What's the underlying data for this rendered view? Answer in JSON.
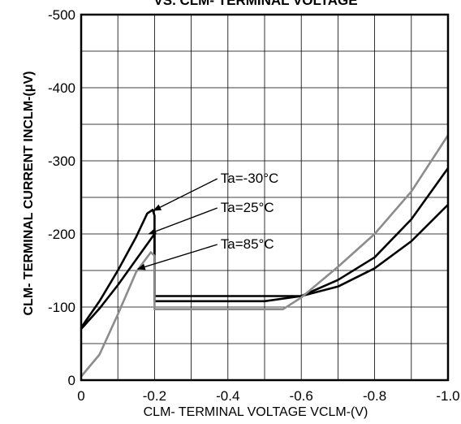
{
  "chart_data": {
    "type": "line",
    "title": "VS. CLM- TERMINAL VOLTAGE",
    "xlabel": "CLM- TERMINAL VOLTAGE VCLM-(V)",
    "ylabel": "CLM- TERMINAL CURRENT INCLM-(μV)",
    "xlim": [
      0,
      -1.0
    ],
    "ylim": [
      0,
      -500
    ],
    "x_ticks": [
      "0",
      "-0.2",
      "-0.4",
      "-0.6",
      "-0.8",
      "-1.0"
    ],
    "x_tick_values": [
      0,
      -0.2,
      -0.4,
      -0.6,
      -0.8,
      -1.0
    ],
    "y_ticks": [
      "0",
      "-100",
      "-200",
      "-300",
      "-400",
      "-500"
    ],
    "y_tick_values": [
      0,
      -100,
      -200,
      -300,
      -400,
      -500
    ],
    "grid": true,
    "series": [
      {
        "name": "Ta=-30°C",
        "color": "#000000",
        "points": [
          [
            0,
            -72
          ],
          [
            -0.05,
            -108
          ],
          [
            -0.1,
            -150
          ],
          [
            -0.15,
            -196
          ],
          [
            -0.18,
            -228
          ],
          [
            -0.195,
            -233
          ],
          [
            -0.2,
            -225
          ],
          [
            -0.2,
            -115
          ],
          [
            -0.3,
            -115
          ],
          [
            -0.4,
            -115
          ],
          [
            -0.5,
            -115
          ],
          [
            -0.6,
            -115
          ],
          [
            -0.7,
            -128
          ],
          [
            -0.8,
            -153
          ],
          [
            -0.9,
            -190
          ],
          [
            -1.0,
            -240
          ]
        ]
      },
      {
        "name": "Ta=25°C",
        "color": "#000000",
        "points": [
          [
            0,
            -70
          ],
          [
            -0.05,
            -98
          ],
          [
            -0.1,
            -130
          ],
          [
            -0.15,
            -165
          ],
          [
            -0.2,
            -200
          ],
          [
            -0.2,
            -108
          ],
          [
            -0.3,
            -108
          ],
          [
            -0.4,
            -108
          ],
          [
            -0.5,
            -108
          ],
          [
            -0.6,
            -115
          ],
          [
            -0.7,
            -137
          ],
          [
            -0.8,
            -168
          ],
          [
            -0.9,
            -220
          ],
          [
            -1.0,
            -290
          ]
        ]
      },
      {
        "name": "Ta=85°C",
        "color": "#8c8c8c",
        "points": [
          [
            0,
            -5
          ],
          [
            -0.05,
            -35
          ],
          [
            -0.1,
            -90
          ],
          [
            -0.15,
            -148
          ],
          [
            -0.19,
            -175
          ],
          [
            -0.2,
            -170
          ],
          [
            -0.2,
            -97
          ],
          [
            -0.3,
            -97
          ],
          [
            -0.4,
            -97
          ],
          [
            -0.55,
            -97
          ],
          [
            -0.6,
            -113
          ],
          [
            -0.7,
            -155
          ],
          [
            -0.8,
            -200
          ],
          [
            -0.9,
            -258
          ],
          [
            -1.0,
            -335
          ]
        ]
      }
    ],
    "annotations": [
      {
        "label": "Ta=-30°C",
        "points_to": [
          -0.193,
          -232
        ]
      },
      {
        "label": "Ta=25°C",
        "points_to": [
          -0.18,
          -200
        ]
      },
      {
        "label": "Ta=85°C",
        "points_to": [
          -0.15,
          -152
        ]
      }
    ]
  }
}
